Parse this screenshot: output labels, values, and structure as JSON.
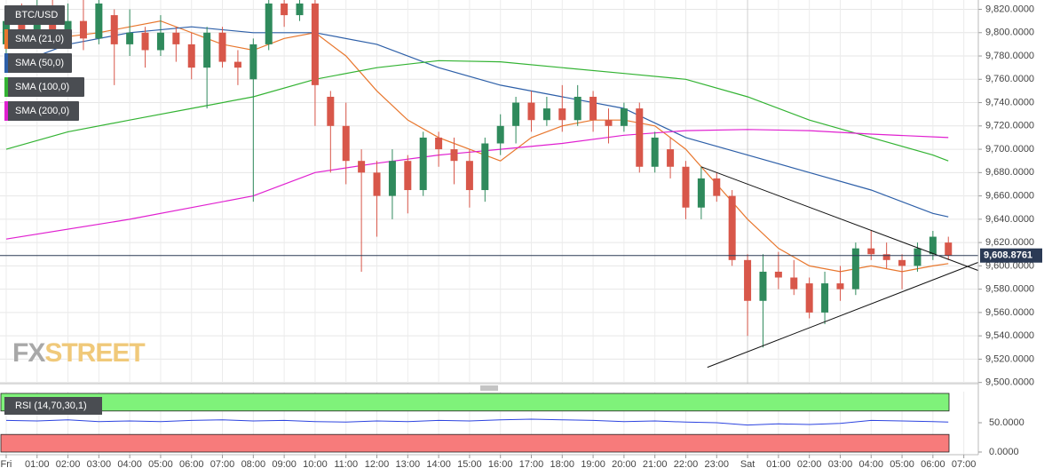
{
  "chart_data": {
    "type": "candlestick",
    "symbol": "BTC/USD",
    "x": [
      0,
      0.5,
      1,
      1.5,
      2,
      2.5,
      3,
      3.5,
      4,
      4.5,
      5,
      5.5,
      6,
      6.5,
      7,
      7.5,
      8,
      8.5,
      9,
      9.5,
      10,
      10.5,
      11,
      11.5,
      12,
      12.5,
      13,
      13.5,
      14,
      14.5,
      15,
      15.5,
      16,
      16.5,
      17,
      17.5,
      18,
      18.5,
      19,
      19.5,
      20,
      20.5,
      21,
      21.5,
      22,
      22.5,
      23,
      23.5,
      24,
      24.5,
      25,
      25.5,
      26,
      26.5,
      27,
      27.5,
      28,
      28.5,
      29,
      29.5,
      30,
      30.5
    ],
    "open": [
      9790,
      9810,
      9800,
      9815,
      9800,
      9810,
      9795,
      9815,
      9790,
      9800,
      9785,
      9800,
      9790,
      9770,
      9800,
      9775,
      9760,
      9790,
      9825,
      9815,
      9825,
      9745,
      9720,
      9690,
      9680,
      9660,
      9690,
      9665,
      9710,
      9700,
      9690,
      9665,
      9705,
      9720,
      9740,
      9725,
      9735,
      9725,
      9745,
      9725,
      9720,
      9735,
      9685,
      9700,
      9685,
      9650,
      9675,
      9660,
      9605,
      9570,
      9595,
      9590,
      9585,
      9560,
      9585,
      9580,
      9615,
      9610,
      9605,
      9600,
      9610,
      9620
    ],
    "high": [
      9820,
      9825,
      9828,
      9828,
      9825,
      9828,
      9828,
      9820,
      9820,
      9805,
      9815,
      9805,
      9800,
      9805,
      9805,
      9785,
      9795,
      9828,
      9828,
      9828,
      9828,
      9750,
      9740,
      9700,
      9690,
      9700,
      9695,
      9715,
      9715,
      9710,
      9700,
      9710,
      9730,
      9745,
      9750,
      9745,
      9755,
      9755,
      9750,
      9735,
      9740,
      9740,
      9715,
      9710,
      9690,
      9685,
      9680,
      9665,
      9610,
      9610,
      9612,
      9605,
      9590,
      9595,
      9600,
      9620,
      9630,
      9620,
      9610,
      9620,
      9630,
      9625
    ],
    "low": [
      9780,
      9795,
      9795,
      9790,
      9795,
      9785,
      9790,
      9755,
      9780,
      9770,
      9780,
      9775,
      9760,
      9735,
      9770,
      9755,
      9655,
      9785,
      9805,
      9810,
      9720,
      9680,
      9670,
      9595,
      9625,
      9640,
      9645,
      9660,
      9685,
      9670,
      9650,
      9655,
      9695,
      9705,
      9715,
      9720,
      9715,
      9720,
      9715,
      9705,
      9715,
      9680,
      9680,
      9675,
      9640,
      9640,
      9655,
      9600,
      9540,
      9530,
      9580,
      9575,
      9555,
      9550,
      9570,
      9575,
      9605,
      9598,
      9580,
      9595,
      9605,
      9605
    ],
    "close": [
      9810,
      9800,
      9815,
      9800,
      9810,
      9795,
      9825,
      9790,
      9800,
      9785,
      9800,
      9790,
      9770,
      9800,
      9775,
      9770,
      9790,
      9825,
      9815,
      9825,
      9755,
      9720,
      9690,
      9680,
      9660,
      9690,
      9665,
      9710,
      9700,
      9690,
      9665,
      9705,
      9720,
      9740,
      9725,
      9735,
      9725,
      9745,
      9725,
      9720,
      9735,
      9685,
      9710,
      9685,
      9650,
      9675,
      9660,
      9605,
      9570,
      9595,
      9590,
      9580,
      9560,
      9585,
      9580,
      9615,
      9610,
      9605,
      9600,
      9615,
      9625,
      9609
    ],
    "colors": {
      "up": "#2f8a5c",
      "down": "#d8574a"
    },
    "xlim": [
      -0.2,
      31.47
    ],
    "ylim": [
      9499,
      9828
    ],
    "grid": true,
    "xticks": [
      {
        "value": 0,
        "label": "Fri"
      },
      {
        "value": 1,
        "label": "01:00"
      },
      {
        "value": 2,
        "label": "02:00"
      },
      {
        "value": 3,
        "label": "03:00"
      },
      {
        "value": 4,
        "label": "04:00"
      },
      {
        "value": 5,
        "label": "05:00"
      },
      {
        "value": 6,
        "label": "06:00"
      },
      {
        "value": 7,
        "label": "07:00"
      },
      {
        "value": 8,
        "label": "08:00"
      },
      {
        "value": 9,
        "label": "09:00"
      },
      {
        "value": 10,
        "label": "10:00"
      },
      {
        "value": 11,
        "label": "11:00"
      },
      {
        "value": 12,
        "label": "12:00"
      },
      {
        "value": 13,
        "label": "13:00"
      },
      {
        "value": 14,
        "label": "14:00"
      },
      {
        "value": 15,
        "label": "15:00"
      },
      {
        "value": 16,
        "label": "16:00"
      },
      {
        "value": 17,
        "label": "17:00"
      },
      {
        "value": 18,
        "label": "18:00"
      },
      {
        "value": 19,
        "label": "19:00"
      },
      {
        "value": 20,
        "label": "20:00"
      },
      {
        "value": 21,
        "label": "21:00"
      },
      {
        "value": 22,
        "label": "22:00"
      },
      {
        "value": 23,
        "label": "23:00"
      },
      {
        "value": 24,
        "label": "Sat"
      },
      {
        "value": 25,
        "label": "01:00"
      },
      {
        "value": 26,
        "label": "02:00"
      },
      {
        "value": 27,
        "label": "03:00"
      },
      {
        "value": 28,
        "label": "04:00"
      },
      {
        "value": 29,
        "label": "05:00"
      },
      {
        "value": 30,
        "label": "06:00"
      },
      {
        "value": 31,
        "label": "07:00"
      }
    ],
    "yticks": [
      {
        "value": 9500,
        "label": "9,500.0000"
      },
      {
        "value": 9520,
        "label": "9,520.0000"
      },
      {
        "value": 9540,
        "label": "9,540.0000"
      },
      {
        "value": 9560,
        "label": "9,560.0000"
      },
      {
        "value": 9580,
        "label": "9,580.0000"
      },
      {
        "value": 9600,
        "label": "9,600.0000"
      },
      {
        "value": 9620,
        "label": "9,620.0000"
      },
      {
        "value": 9640,
        "label": "9,640.0000"
      },
      {
        "value": 9660,
        "label": "9,660.0000"
      },
      {
        "value": 9680,
        "label": "9,680.0000"
      },
      {
        "value": 9700,
        "label": "9,700.0000"
      },
      {
        "value": 9720,
        "label": "9,720.0000"
      },
      {
        "value": 9740,
        "label": "9,740.0000"
      },
      {
        "value": 9760,
        "label": "9,760.0000"
      },
      {
        "value": 9780,
        "label": "9,780.0000"
      },
      {
        "value": 9800,
        "label": "9,800.0000"
      },
      {
        "value": 9820,
        "label": "9,820.0000"
      }
    ],
    "indicators": [
      {
        "name": "SMA (21,0)",
        "color": "#e8772e",
        "x": [
          0,
          3,
          5,
          7,
          8,
          9,
          10,
          11,
          12,
          13,
          14,
          15,
          16,
          17,
          18,
          19,
          20,
          21,
          22,
          23,
          24,
          25,
          26,
          27,
          28,
          29,
          30,
          30.5
        ],
        "values": [
          9790,
          9800,
          9810,
          9790,
          9785,
          9795,
          9800,
          9780,
          9750,
          9725,
          9710,
          9700,
          9690,
          9710,
          9720,
          9725,
          9725,
          9720,
          9700,
          9670,
          9640,
          9615,
          9600,
          9595,
          9600,
          9595,
          9600,
          9602
        ]
      },
      {
        "name": "SMA (50,0)",
        "color": "#2d5fa8",
        "x": [
          0,
          2,
          4,
          6,
          8,
          10,
          12,
          14,
          16,
          18,
          20,
          22,
          24,
          26,
          28,
          30,
          30.5
        ],
        "values": [
          9770,
          9790,
          9800,
          9805,
          9800,
          9800,
          9790,
          9770,
          9755,
          9745,
          9735,
          9710,
          9695,
          9680,
          9665,
          9645,
          9642
        ]
      },
      {
        "name": "SMA (100,0)",
        "color": "#33b333",
        "x": [
          0,
          2,
          4,
          6,
          8,
          10,
          12,
          14,
          16,
          18,
          20,
          22,
          24,
          26,
          28,
          30,
          30.5
        ],
        "values": [
          9700,
          9715,
          9725,
          9735,
          9745,
          9760,
          9770,
          9776,
          9775,
          9770,
          9765,
          9760,
          9745,
          9725,
          9710,
          9695,
          9690
        ]
      },
      {
        "name": "SMA (200,0)",
        "color": "#e020d0",
        "x": [
          0,
          4,
          8,
          10,
          12,
          14,
          16,
          18,
          20,
          22,
          24,
          26,
          28,
          30.5
        ],
        "values": [
          9623,
          9640,
          9660,
          9680,
          9688,
          9695,
          9700,
          9705,
          9712,
          9716,
          9717,
          9716,
          9713,
          9710
        ]
      }
    ],
    "last_price": {
      "value": 9608.8761,
      "label": "9,608.8761"
    },
    "trendlines": [
      {
        "x": [
          22.5,
          31.47
        ],
        "values": [
          9685,
          9596
        ]
      },
      {
        "x": [
          22.7,
          31.47
        ],
        "values": [
          9513,
          9603
        ]
      }
    ],
    "rsi": {
      "name": "RSI (14,70,30,1)",
      "color": "#2d44e0",
      "x": [
        0,
        1,
        2,
        3,
        4,
        5,
        6,
        7,
        8,
        9,
        10,
        11,
        12,
        13,
        14,
        15,
        16,
        17,
        18,
        19,
        20,
        21,
        22,
        23,
        24,
        25,
        26,
        27,
        28,
        29,
        30,
        30.5
      ],
      "values": [
        54,
        53,
        55,
        52,
        53,
        52,
        54,
        55,
        53,
        54,
        52,
        51,
        53,
        52,
        54,
        53,
        55,
        56,
        55,
        54,
        52,
        53,
        51,
        50,
        46,
        48,
        47,
        49,
        54,
        53,
        52,
        51
      ],
      "ylim": [
        0,
        100
      ],
      "yticks": [
        {
          "value": 0,
          "label": "0.0000"
        },
        {
          "value": 50,
          "label": "50.0000"
        }
      ],
      "overbought": 70,
      "oversold": 30
    }
  },
  "logo": {
    "left": "FX",
    "right": "STREET"
  }
}
